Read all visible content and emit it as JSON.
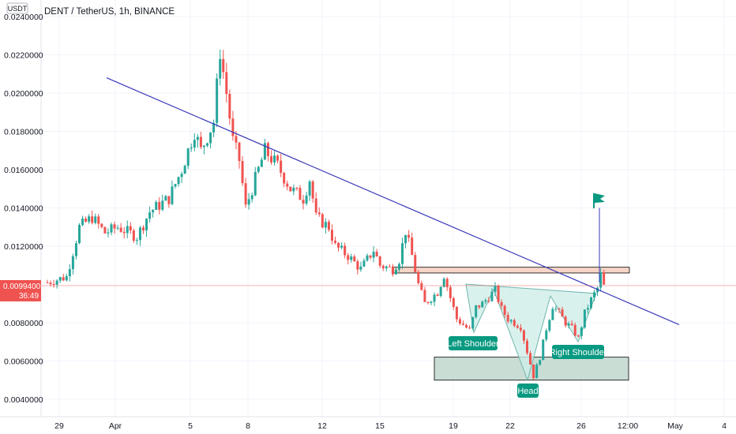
{
  "header": {
    "title": "DENT / TetherUS, 1h, BINANCE",
    "currency_badge": "USDT"
  },
  "last_price": {
    "value": "0.0099400",
    "countdown": "36:49",
    "price": 0.00994
  },
  "annotations": {
    "left_shoulder": "Left Shoulder",
    "head": "Head",
    "right_shoulder": "Right Shoulder"
  },
  "colors": {
    "up": "#26a69a",
    "down": "#ef5350",
    "trendline": "#3a3ab8",
    "label_bg": "#089981",
    "price_tag": "#ef5350",
    "resistance_fill": "#f6d5c7",
    "support_fill": "#c9ddd5",
    "pattern_fill": "#cfeee9",
    "flag": "#089981"
  },
  "chart_data": {
    "type": "candlestick",
    "symbol": "DENT / TetherUS",
    "interval": "1h",
    "exchange": "BINANCE",
    "ylim": [
      0.0036,
      0.0245
    ],
    "y_ticks": [
      "0.0040000",
      "0.0060000",
      "0.0080000",
      "0.0120000",
      "0.0140000",
      "0.0160000",
      "0.0180000",
      "0.0200000",
      "0.0220000",
      "0.0240000"
    ],
    "x_ticks": [
      "29",
      "Apr",
      "5",
      "8",
      "12",
      "15",
      "19",
      "22",
      "26",
      "12:00",
      "May",
      "4"
    ],
    "price_path": [
      [
        0,
        0.0101
      ],
      [
        3,
        0.0104
      ],
      [
        5,
        0.013
      ],
      [
        7,
        0.0135
      ],
      [
        9,
        0.0127
      ],
      [
        11,
        0.013
      ],
      [
        14,
        0.0125
      ],
      [
        16,
        0.0138
      ],
      [
        19,
        0.0145
      ],
      [
        21,
        0.016
      ],
      [
        23,
        0.018
      ],
      [
        24,
        0.017
      ],
      [
        26,
        0.0185
      ],
      [
        27,
        0.0222
      ],
      [
        28,
        0.02
      ],
      [
        29,
        0.0175
      ],
      [
        30,
        0.0165
      ],
      [
        31,
        0.014
      ],
      [
        33,
        0.016
      ],
      [
        34,
        0.017
      ],
      [
        36,
        0.0162
      ],
      [
        38,
        0.015
      ],
      [
        40,
        0.0145
      ],
      [
        41,
        0.0155
      ],
      [
        42,
        0.0135
      ],
      [
        44,
        0.013
      ],
      [
        45,
        0.012
      ],
      [
        47,
        0.0115
      ],
      [
        49,
        0.0108
      ],
      [
        51,
        0.0118
      ],
      [
        52,
        0.011
      ],
      [
        54,
        0.0108
      ],
      [
        55,
        0.0113
      ],
      [
        56,
        0.0128
      ],
      [
        57,
        0.0115
      ],
      [
        58,
        0.01
      ],
      [
        59,
        0.009
      ],
      [
        61,
        0.0096
      ],
      [
        62,
        0.0105
      ],
      [
        63,
        0.0093
      ],
      [
        64,
        0.0082
      ],
      [
        66,
        0.0076
      ],
      [
        67,
        0.0088
      ],
      [
        68,
        0.009
      ],
      [
        70,
        0.0097
      ],
      [
        71,
        0.0087
      ],
      [
        72,
        0.0082
      ],
      [
        74,
        0.0078
      ],
      [
        75,
        0.0065
      ],
      [
        76,
        0.0052
      ],
      [
        77,
        0.0062
      ],
      [
        78,
        0.0077
      ],
      [
        79,
        0.0089
      ],
      [
        80,
        0.0085
      ],
      [
        81,
        0.008
      ],
      [
        82,
        0.0077
      ],
      [
        83,
        0.0072
      ],
      [
        84,
        0.0085
      ],
      [
        85,
        0.0092
      ],
      [
        86,
        0.0098
      ],
      [
        86.5,
        0.0105
      ],
      [
        87,
        0.0099
      ]
    ],
    "trendline": [
      [
        0.0208,
        "start"
      ],
      [
        0.0079,
        "end"
      ]
    ],
    "resistance_zone": [
      0.0106,
      0.0109
    ],
    "support_zone": [
      0.005,
      0.0062
    ],
    "pattern": {
      "left_shoulder_price": 0.0075,
      "head_price": 0.005,
      "right_shoulder_price": 0.007,
      "neckline": [
        0.0096,
        0.0093
      ]
    }
  }
}
